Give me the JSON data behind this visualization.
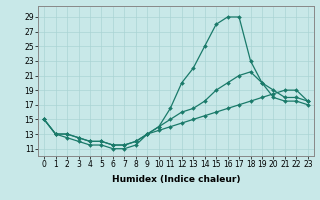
{
  "xlabel": "Humidex (Indice chaleur)",
  "bg_color": "#c8e8e8",
  "line_color": "#1a7a6a",
  "xlim": [
    -0.5,
    23.5
  ],
  "ylim": [
    10.0,
    30.5
  ],
  "yticks": [
    11,
    13,
    15,
    17,
    19,
    21,
    23,
    25,
    27,
    29
  ],
  "xticks": [
    0,
    1,
    2,
    3,
    4,
    5,
    6,
    7,
    8,
    9,
    10,
    11,
    12,
    13,
    14,
    15,
    16,
    17,
    18,
    19,
    20,
    21,
    22,
    23
  ],
  "series": [
    [
      15,
      13,
      12.5,
      12,
      11.5,
      11.5,
      11,
      11,
      11.5,
      13,
      14,
      16.5,
      20,
      22,
      25,
      28,
      29,
      29,
      23,
      20,
      18,
      17.5,
      17.5,
      17
    ],
    [
      15,
      13,
      13,
      12.5,
      12,
      12,
      11.5,
      11.5,
      12,
      13,
      14,
      15,
      16,
      16.5,
      17.5,
      19,
      20,
      21,
      21.5,
      20,
      19,
      18,
      18,
      17.5
    ],
    [
      15,
      13,
      13,
      12.5,
      12,
      12,
      11.5,
      11.5,
      12,
      13,
      13.5,
      14,
      14.5,
      15,
      15.5,
      16,
      16.5,
      17,
      17.5,
      18,
      18.5,
      19,
      19,
      17.5
    ]
  ],
  "grid_color": "#aad4d4",
  "spine_color": "#888888",
  "tick_fontsize": 5.5,
  "xlabel_fontsize": 6.5
}
